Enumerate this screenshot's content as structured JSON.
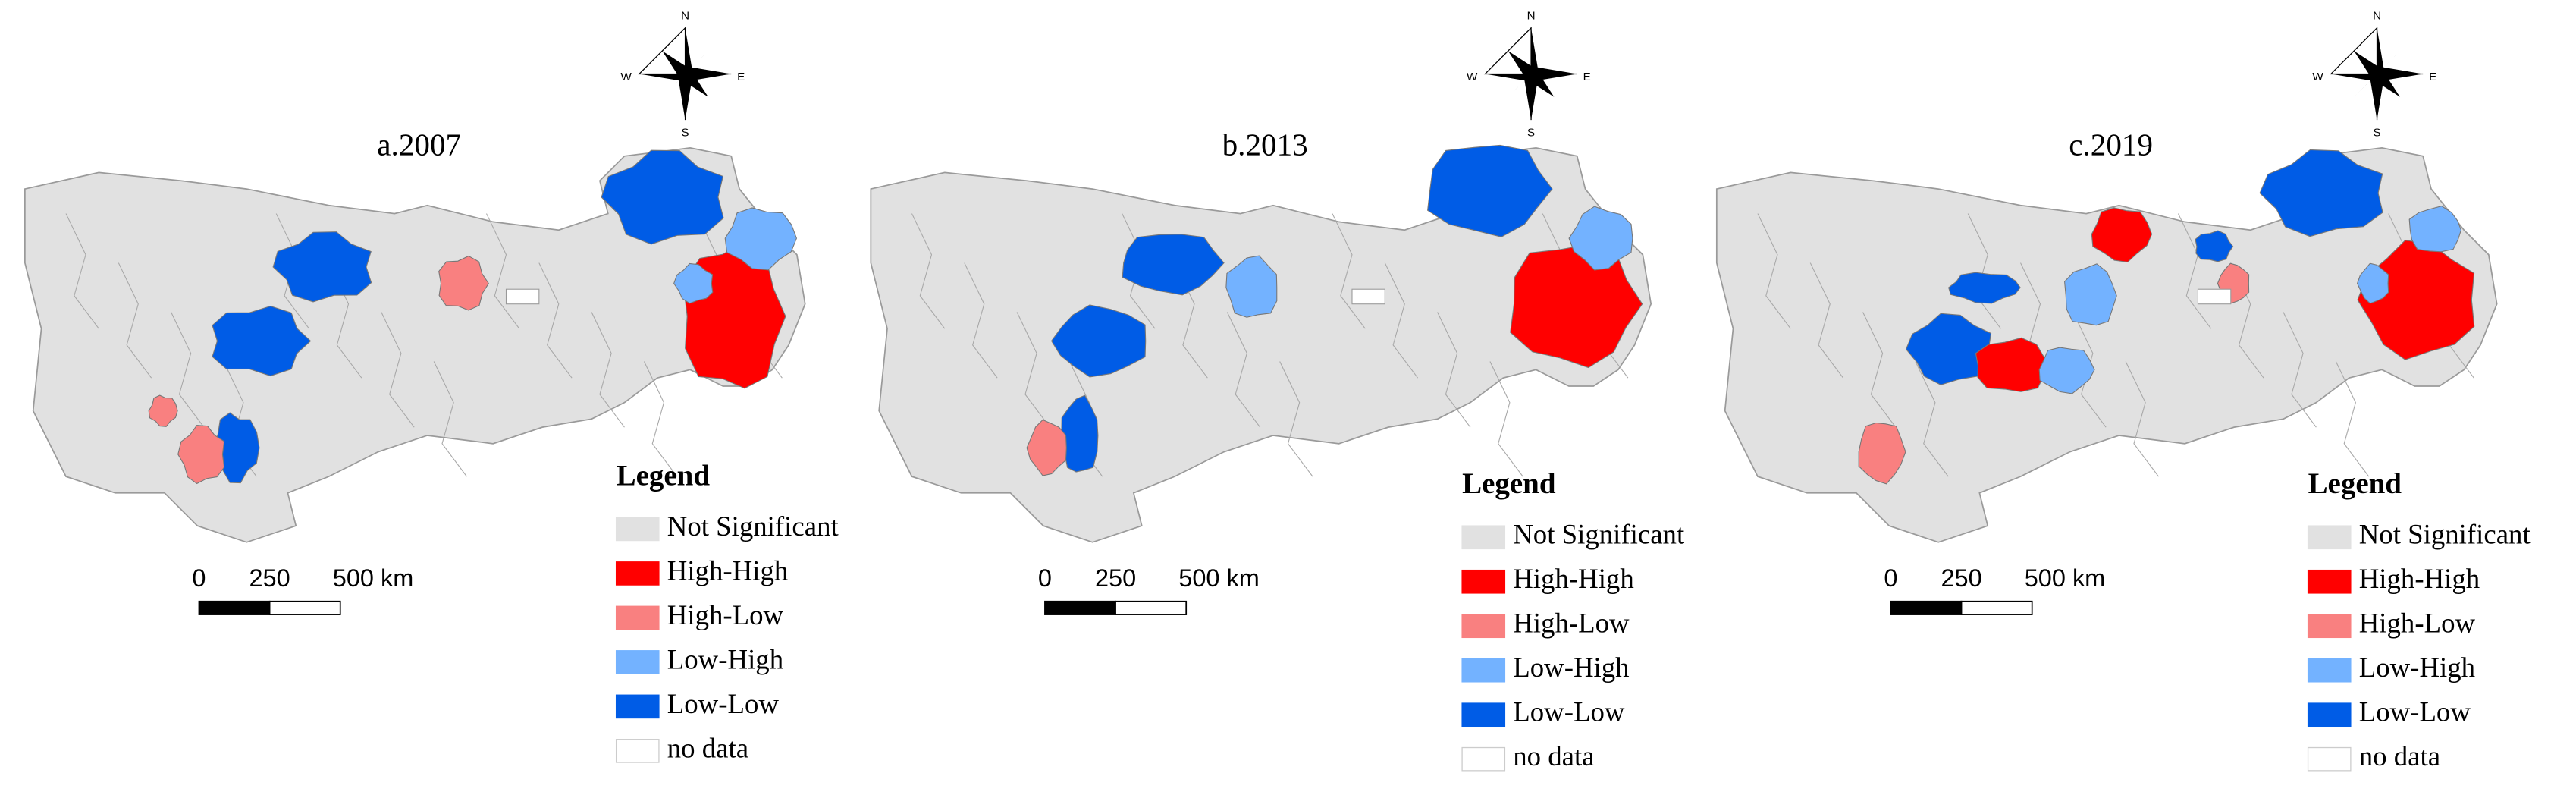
{
  "panels": [
    {
      "title": "a.2007",
      "compass": [
        "N",
        "S",
        "W",
        "E"
      ],
      "scale_labels": [
        "0",
        "250",
        "500 km"
      ],
      "legend": {
        "title": "Legend",
        "items": [
          {
            "label": "Not Significant",
            "color": "#e1e1e1"
          },
          {
            "label": "High-High",
            "color": "#ff0000"
          },
          {
            "label": "High-Low",
            "color": "#f98080"
          },
          {
            "label": "Low-High",
            "color": "#73b2ff"
          },
          {
            "label": "Low-Low",
            "color": "#005ce6"
          },
          {
            "label": "no data",
            "color": "#ffffff"
          }
        ]
      }
    },
    {
      "title": "b.2013",
      "compass": [
        "N",
        "S",
        "W",
        "E"
      ],
      "scale_labels": [
        "0",
        "250",
        "500 km"
      ],
      "legend": {
        "title": "Legend",
        "items": [
          {
            "label": "Not Significant",
            "color": "#e1e1e1"
          },
          {
            "label": "High-High",
            "color": "#ff0000"
          },
          {
            "label": "High-Low",
            "color": "#f98080"
          },
          {
            "label": "Low-High",
            "color": "#73b2ff"
          },
          {
            "label": "Low-Low",
            "color": "#005ce6"
          },
          {
            "label": "no data",
            "color": "#ffffff"
          }
        ]
      }
    },
    {
      "title": "c.2019",
      "compass": [
        "N",
        "S",
        "W",
        "E"
      ],
      "scale_labels": [
        "0",
        "250",
        "500 km"
      ],
      "legend": {
        "title": "Legend",
        "items": [
          {
            "label": "Not Significant",
            "color": "#e1e1e1"
          },
          {
            "label": "High-High",
            "color": "#ff0000"
          },
          {
            "label": "High-Low",
            "color": "#f98080"
          },
          {
            "label": "Low-High",
            "color": "#73b2ff"
          },
          {
            "label": "Low-Low",
            "color": "#005ce6"
          },
          {
            "label": "no data",
            "color": "#ffffff"
          }
        ]
      }
    }
  ]
}
